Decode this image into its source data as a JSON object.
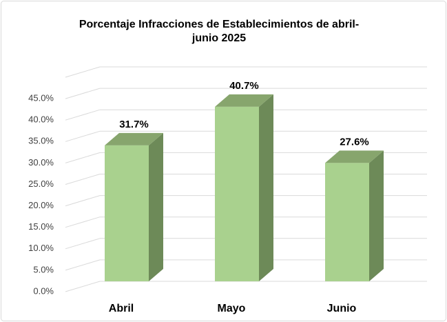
{
  "chart_data": {
    "type": "bar3d",
    "title": "Porcentaje Infracciones de Establecimientos de abril-junio 2025",
    "categories": [
      "Abril",
      "Mayo",
      "Junio"
    ],
    "values": [
      31.7,
      40.7,
      27.6
    ],
    "value_labels": [
      "31.7%",
      "40.7%",
      "27.6%"
    ],
    "color": "#a9d18e",
    "ylim": [
      0,
      50
    ],
    "yticks": [
      {
        "value": 0,
        "label": "0.0%"
      },
      {
        "value": 5,
        "label": "5.0%"
      },
      {
        "value": 10,
        "label": "10.0%"
      },
      {
        "value": 15,
        "label": "15.0%"
      },
      {
        "value": 20,
        "label": "20.0%"
      },
      {
        "value": 25,
        "label": "25.0%"
      },
      {
        "value": 30,
        "label": "30.0%"
      },
      {
        "value": 35,
        "label": "35.0%"
      },
      {
        "value": 40,
        "label": "40.0%"
      },
      {
        "value": 45,
        "label": "45.0%"
      }
    ],
    "grid": true
  }
}
